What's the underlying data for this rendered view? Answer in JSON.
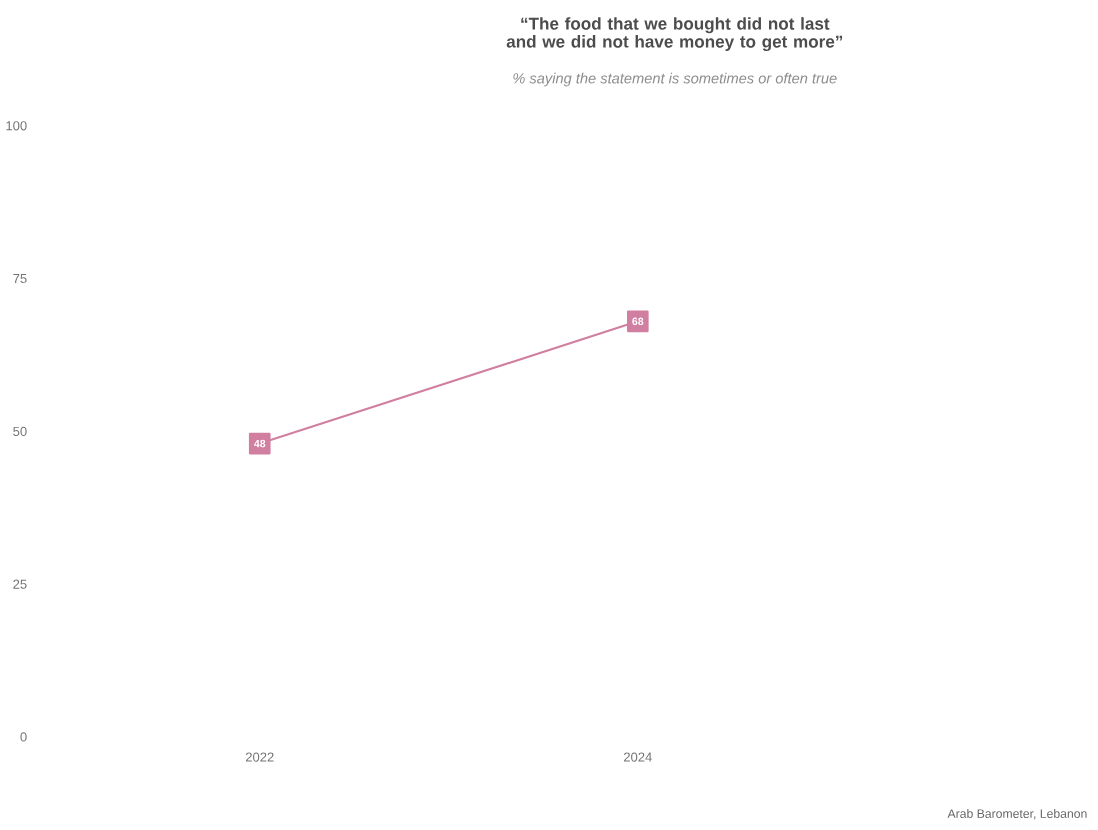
{
  "chart_data": {
    "type": "line",
    "title": "“The food that we bought did not last and we did not have money to get more”",
    "subtitle": "% saying the statement is sometimes or often true",
    "annotations": [
      "Arab Barometer, Lebanon"
    ],
    "categories": [
      "2022",
      "2024"
    ],
    "series": [
      {
        "color": "#d17fa0",
        "values": [
          48,
          68
        ]
      }
    ],
    "ylim": [
      0,
      100
    ],
    "yticks": [
      0,
      25,
      50,
      75,
      100
    ],
    "marker": "square",
    "data_labels": true,
    "line_style": "solid"
  }
}
